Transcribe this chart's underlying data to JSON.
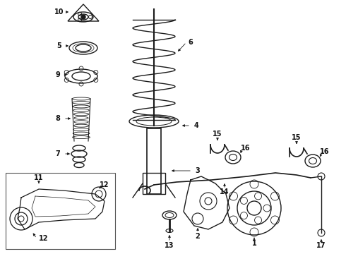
{
  "bg_color": "#ffffff",
  "line_color": "#1a1a1a",
  "label_color": "#111111",
  "figsize": [
    4.9,
    3.6
  ],
  "dpi": 100
}
